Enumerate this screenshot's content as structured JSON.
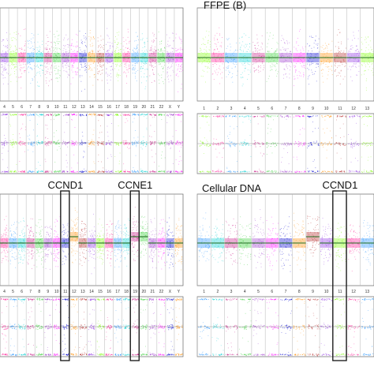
{
  "colors": {
    "palette": [
      "#8a2be2",
      "#7cfc00",
      "#ff1493",
      "#1e90ff",
      "#00ced1",
      "#c71585",
      "#32cd32",
      "#9932cc",
      "#ff00ff",
      "#0000cd",
      "#ff8c00",
      "#b22222"
    ],
    "trend": "#1f6f1f",
    "highlight_box": "#111111"
  },
  "chart_data": [
    {
      "type": "scatter",
      "panel": "top-left",
      "title": "",
      "x_labels": [
        "4",
        "5",
        "6",
        "7",
        "8",
        "9",
        "10",
        "11",
        "12",
        "13",
        "14",
        "15",
        "16",
        "17",
        "18",
        "19",
        "20",
        "21",
        "22",
        "X",
        "Y"
      ],
      "highlights": []
    },
    {
      "type": "scatter",
      "panel": "top-right",
      "title": "FFPE (B)",
      "x_labels": [
        "1",
        "2",
        "3",
        "4",
        "5",
        "6",
        "7",
        "8",
        "9",
        "10",
        "11",
        "12",
        "13"
      ],
      "highlights": []
    },
    {
      "type": "scatter",
      "panel": "bottom-left",
      "title": "",
      "x_labels": [
        "4",
        "5",
        "6",
        "7",
        "8",
        "9",
        "10",
        "11",
        "12",
        "13",
        "14",
        "15",
        "16",
        "17",
        "18",
        "19",
        "20",
        "21",
        "22",
        "X",
        "Y"
      ],
      "highlights": [
        {
          "label": "CCND1",
          "chromosome": "11"
        },
        {
          "label": "CCNE1",
          "chromosome": "19"
        }
      ]
    },
    {
      "type": "scatter",
      "panel": "bottom-right",
      "title": "Cellular DNA",
      "x_labels": [
        "1",
        "2",
        "3",
        "4",
        "5",
        "6",
        "7",
        "8",
        "9",
        "10",
        "11",
        "12",
        "13"
      ],
      "highlights": [
        {
          "label": "CCND1",
          "chromosome": "11"
        }
      ]
    }
  ]
}
